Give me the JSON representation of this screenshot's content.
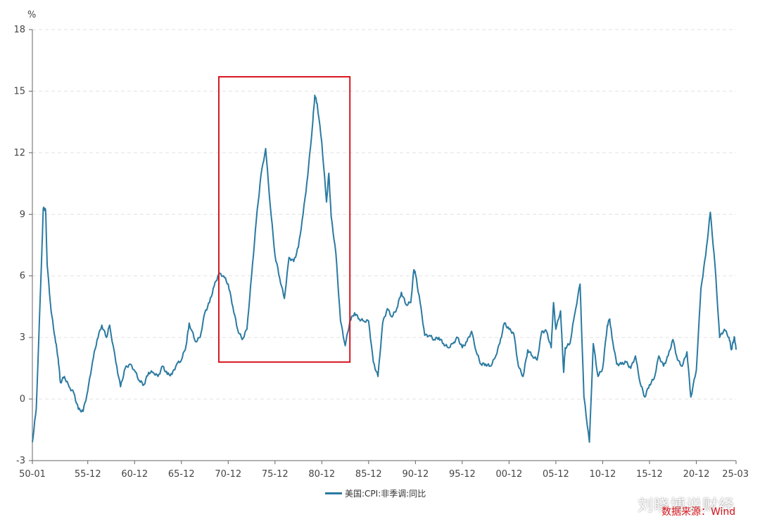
{
  "chart_data": {
    "type": "line",
    "unit": "%",
    "ylim": [
      -3,
      18
    ],
    "yticks": [
      -3,
      0,
      3,
      6,
      9,
      12,
      15,
      18
    ],
    "xlim": [
      "1950-01",
      "2025-03"
    ],
    "xtick_labels": [
      "50-01",
      "55-12",
      "60-12",
      "65-12",
      "70-12",
      "75-12",
      "80-12",
      "85-12",
      "90-12",
      "95-12",
      "00-12",
      "05-12",
      "10-12",
      "15-12",
      "20-12",
      "25-03"
    ],
    "grid": "horizontal-dashed",
    "legend_position": "bottom-center",
    "series": [
      {
        "name": "美国:CPI:非季调:同比",
        "color": "#2a7aa1",
        "points": [
          [
            "1950-01",
            -2.1
          ],
          [
            "1950-06",
            -0.5
          ],
          [
            "1951-01",
            7.0
          ],
          [
            "1951-03",
            9.3
          ],
          [
            "1951-06",
            9.2
          ],
          [
            "1951-08",
            6.5
          ],
          [
            "1952-01",
            4.3
          ],
          [
            "1952-06",
            3.0
          ],
          [
            "1952-10",
            2.0
          ],
          [
            "1953-01",
            0.8
          ],
          [
            "1953-06",
            1.1
          ],
          [
            "1953-12",
            0.6
          ],
          [
            "1954-06",
            0.3
          ],
          [
            "1954-12",
            -0.5
          ],
          [
            "1955-06",
            -0.6
          ],
          [
            "1955-12",
            0.4
          ],
          [
            "1956-06",
            1.8
          ],
          [
            "1956-12",
            2.9
          ],
          [
            "1957-06",
            3.6
          ],
          [
            "1957-12",
            3.0
          ],
          [
            "1958-04",
            3.6
          ],
          [
            "1958-12",
            1.8
          ],
          [
            "1959-06",
            0.6
          ],
          [
            "1959-12",
            1.5
          ],
          [
            "1960-06",
            1.7
          ],
          [
            "1960-12",
            1.4
          ],
          [
            "1961-06",
            0.9
          ],
          [
            "1961-12",
            0.7
          ],
          [
            "1962-06",
            1.3
          ],
          [
            "1962-12",
            1.3
          ],
          [
            "1963-06",
            1.1
          ],
          [
            "1963-12",
            1.6
          ],
          [
            "1964-06",
            1.2
          ],
          [
            "1964-12",
            1.2
          ],
          [
            "1965-06",
            1.7
          ],
          [
            "1965-12",
            1.9
          ],
          [
            "1966-06",
            2.6
          ],
          [
            "1966-10",
            3.7
          ],
          [
            "1967-06",
            2.8
          ],
          [
            "1967-12",
            3.0
          ],
          [
            "1968-06",
            4.2
          ],
          [
            "1968-12",
            4.7
          ],
          [
            "1969-06",
            5.5
          ],
          [
            "1969-12",
            6.1
          ],
          [
            "1970-06",
            6.0
          ],
          [
            "1970-12",
            5.6
          ],
          [
            "1971-06",
            4.5
          ],
          [
            "1971-12",
            3.4
          ],
          [
            "1972-06",
            2.9
          ],
          [
            "1972-12",
            3.4
          ],
          [
            "1973-06",
            6.0
          ],
          [
            "1973-12",
            8.7
          ],
          [
            "1974-06",
            10.9
          ],
          [
            "1974-12",
            12.2
          ],
          [
            "1975-06",
            9.4
          ],
          [
            "1975-12",
            7.0
          ],
          [
            "1976-06",
            5.9
          ],
          [
            "1976-12",
            4.9
          ],
          [
            "1977-06",
            6.9
          ],
          [
            "1977-12",
            6.7
          ],
          [
            "1978-06",
            7.4
          ],
          [
            "1978-12",
            9.0
          ],
          [
            "1979-06",
            10.9
          ],
          [
            "1979-12",
            13.3
          ],
          [
            "1980-03",
            14.8
          ],
          [
            "1980-06",
            14.4
          ],
          [
            "1980-12",
            12.5
          ],
          [
            "1981-06",
            9.6
          ],
          [
            "1981-09",
            11.0
          ],
          [
            "1981-12",
            8.9
          ],
          [
            "1982-06",
            7.1
          ],
          [
            "1982-12",
            3.8
          ],
          [
            "1983-06",
            2.6
          ],
          [
            "1983-12",
            3.8
          ],
          [
            "1984-06",
            4.2
          ],
          [
            "1984-12",
            3.9
          ],
          [
            "1985-06",
            3.8
          ],
          [
            "1985-12",
            3.8
          ],
          [
            "1986-06",
            1.8
          ],
          [
            "1986-12",
            1.1
          ],
          [
            "1987-06",
            3.7
          ],
          [
            "1987-12",
            4.4
          ],
          [
            "1988-06",
            4.0
          ],
          [
            "1988-12",
            4.4
          ],
          [
            "1989-06",
            5.2
          ],
          [
            "1989-12",
            4.6
          ],
          [
            "1990-06",
            4.7
          ],
          [
            "1990-10",
            6.3
          ],
          [
            "1990-12",
            6.1
          ],
          [
            "1991-06",
            4.7
          ],
          [
            "1991-12",
            3.1
          ],
          [
            "1992-06",
            3.1
          ],
          [
            "1992-12",
            2.9
          ],
          [
            "1993-06",
            3.0
          ],
          [
            "1993-12",
            2.7
          ],
          [
            "1994-06",
            2.5
          ],
          [
            "1994-12",
            2.7
          ],
          [
            "1995-06",
            3.0
          ],
          [
            "1995-12",
            2.5
          ],
          [
            "1996-06",
            2.8
          ],
          [
            "1996-12",
            3.3
          ],
          [
            "1997-06",
            2.3
          ],
          [
            "1997-12",
            1.7
          ],
          [
            "1998-06",
            1.7
          ],
          [
            "1998-12",
            1.6
          ],
          [
            "1999-06",
            2.0
          ],
          [
            "1999-12",
            2.7
          ],
          [
            "2000-06",
            3.7
          ],
          [
            "2000-12",
            3.4
          ],
          [
            "2001-06",
            3.2
          ],
          [
            "2001-12",
            1.6
          ],
          [
            "2002-06",
            1.1
          ],
          [
            "2002-12",
            2.4
          ],
          [
            "2003-06",
            2.1
          ],
          [
            "2003-12",
            1.9
          ],
          [
            "2004-06",
            3.3
          ],
          [
            "2004-12",
            3.3
          ],
          [
            "2005-06",
            2.5
          ],
          [
            "2005-09",
            4.7
          ],
          [
            "2005-12",
            3.4
          ],
          [
            "2006-06",
            4.3
          ],
          [
            "2006-10",
            1.3
          ],
          [
            "2006-12",
            2.5
          ],
          [
            "2007-06",
            2.7
          ],
          [
            "2007-12",
            4.1
          ],
          [
            "2008-07",
            5.6
          ],
          [
            "2008-12",
            0.1
          ],
          [
            "2009-07",
            -2.1
          ],
          [
            "2009-12",
            2.7
          ],
          [
            "2010-06",
            1.1
          ],
          [
            "2010-12",
            1.5
          ],
          [
            "2011-06",
            3.6
          ],
          [
            "2011-09",
            3.9
          ],
          [
            "2011-12",
            3.0
          ],
          [
            "2012-06",
            1.7
          ],
          [
            "2012-12",
            1.7
          ],
          [
            "2013-06",
            1.8
          ],
          [
            "2013-12",
            1.5
          ],
          [
            "2014-06",
            2.1
          ],
          [
            "2014-12",
            0.8
          ],
          [
            "2015-06",
            0.1
          ],
          [
            "2015-12",
            0.7
          ],
          [
            "2016-06",
            1.0
          ],
          [
            "2016-12",
            2.1
          ],
          [
            "2017-06",
            1.6
          ],
          [
            "2017-12",
            2.1
          ],
          [
            "2018-06",
            2.9
          ],
          [
            "2018-12",
            1.9
          ],
          [
            "2019-06",
            1.6
          ],
          [
            "2019-12",
            2.3
          ],
          [
            "2020-05",
            0.1
          ],
          [
            "2020-12",
            1.4
          ],
          [
            "2021-06",
            5.4
          ],
          [
            "2021-12",
            7.0
          ],
          [
            "2022-06",
            9.1
          ],
          [
            "2022-12",
            6.5
          ],
          [
            "2023-06",
            3.0
          ],
          [
            "2023-12",
            3.4
          ],
          [
            "2024-06",
            3.0
          ],
          [
            "2024-09",
            2.4
          ],
          [
            "2024-12",
            2.9
          ],
          [
            "2025-01",
            3.0
          ],
          [
            "2025-03",
            2.4
          ]
        ]
      }
    ],
    "highlight_box": {
      "x_range": [
        "1969-12",
        "1983-12"
      ],
      "y_range": [
        1.8,
        15.7
      ],
      "color": "#d7161e"
    }
  },
  "source_text": "数据来源：Wind",
  "watermark_text": "刘晓博说财经"
}
